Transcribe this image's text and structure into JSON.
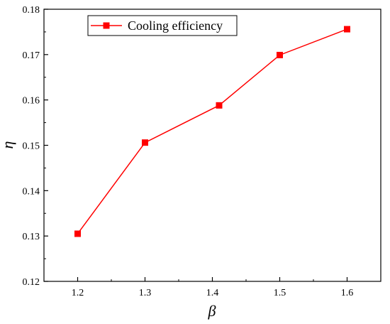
{
  "chart_data": {
    "type": "line",
    "xlabel": "β",
    "ylabel": "η",
    "xlim": [
      1.15,
      1.65
    ],
    "ylim": [
      0.12,
      0.18
    ],
    "x_ticks": [
      1.2,
      1.3,
      1.4,
      1.5,
      1.6
    ],
    "x_tick_labels": [
      "1.2",
      "1.3",
      "1.4",
      "1.5",
      "1.6"
    ],
    "y_ticks": [
      0.12,
      0.13,
      0.14,
      0.15,
      0.16,
      0.17,
      0.18
    ],
    "y_tick_labels": [
      "0.12",
      "0.13",
      "0.14",
      "0.15",
      "0.16",
      "0.17",
      "0.18"
    ],
    "grid": false,
    "legend_position": "top-left",
    "series": [
      {
        "name": "Cooling efficiency",
        "color": "#ff0000",
        "marker": "square",
        "x": [
          1.2,
          1.3,
          1.41,
          1.5,
          1.6
        ],
        "y": [
          0.1305,
          0.1506,
          0.1588,
          0.1699,
          0.1756
        ]
      }
    ]
  }
}
